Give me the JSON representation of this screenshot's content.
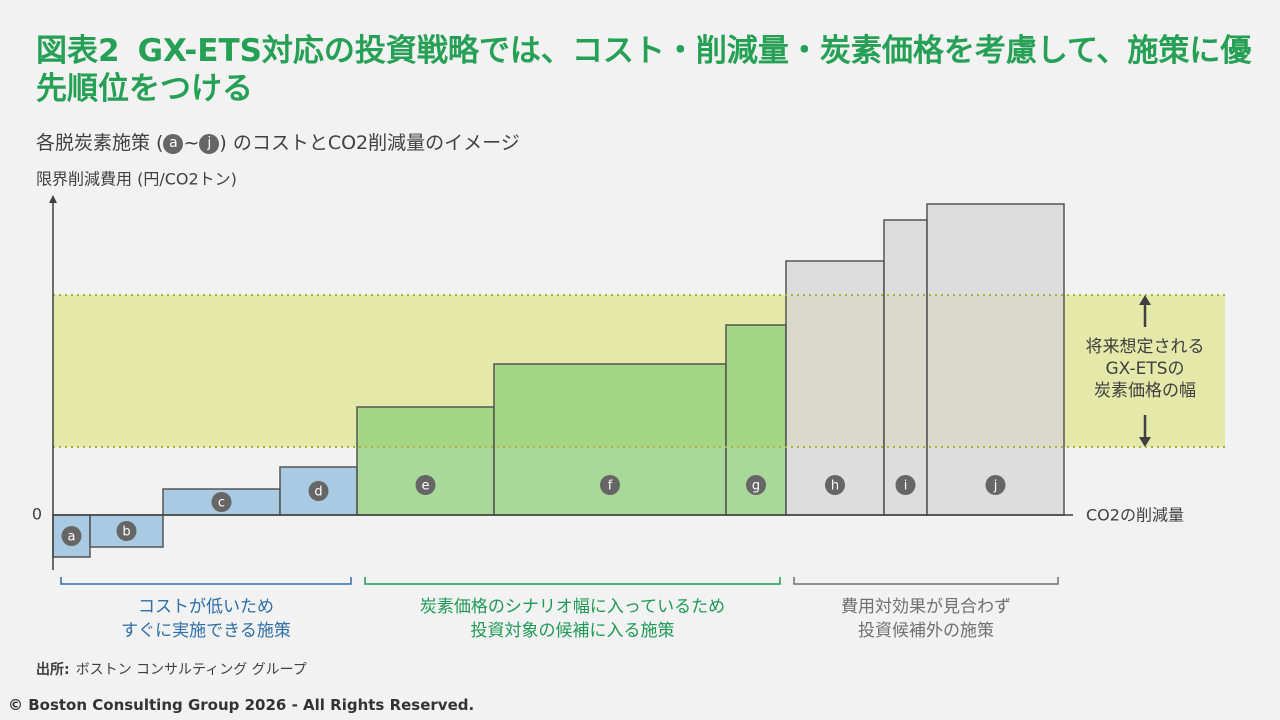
{
  "title_label": "図表2",
  "title": "GX-ETS対応の投資戦略では、コスト・削減量・炭素価格を考慮して、施策に優先順位をつける",
  "subtitle": {
    "before": "各脱炭素施策 (",
    "from": "a",
    "sep": "~",
    "to": "j",
    "after": ") のコストとCO2削減量のイメージ"
  },
  "chart_data": {
    "type": "bar",
    "y_label": "限界削減費用 (円/CO2トン)",
    "x_label": "CO2の削減量",
    "categories": [
      "a",
      "b",
      "c",
      "d",
      "e",
      "f",
      "g",
      "h",
      "i",
      "j"
    ],
    "values": [
      -4.2,
      -3.2,
      2.6,
      4.8,
      10.8,
      15.1,
      19,
      25.4,
      29.5,
      31.1
    ],
    "widths": [
      3.7,
      7.3,
      11.7,
      7.7,
      13.7,
      23.2,
      6,
      9.8,
      4.3,
      13.7
    ],
    "colors": [
      "#8fbcdc",
      "#8fbcdc",
      "#8fbcdc",
      "#8fbcdc",
      "#8fd07a",
      "#8fd07a",
      "#8fd07a",
      "#d6d6d6",
      "#d6d6d6",
      "#d6d6d6"
    ],
    "xlim": [
      0,
      102
    ],
    "ylim": [
      -5.5,
      32
    ],
    "yticks": [
      0
    ],
    "band": {
      "range": [
        6.8,
        22
      ],
      "label": [
        "将来想定される",
        "GX-ETSの",
        "炭素価格の幅"
      ],
      "color": "#e4e8a8"
    },
    "groups": [
      {
        "label": [
          "コストが低いため",
          "すぐに実施できる施策"
        ],
        "members": [
          "a",
          "b",
          "c",
          "d"
        ],
        "color": "#2e6ea8"
      },
      {
        "label": [
          "炭素価格のシナリオ幅に入っているため",
          "投資対象の候補に入る施策"
        ],
        "members": [
          "e",
          "f",
          "g"
        ],
        "color": "#1e9a55"
      },
      {
        "label": [
          "費用対効果が見合わず",
          "投資候補外の施策"
        ],
        "members": [
          "h",
          "i",
          "j"
        ],
        "color": "#707070"
      }
    ]
  },
  "source": {
    "label": "出所:",
    "text": "ボストン コンサルティング グループ"
  },
  "copyright": "© Boston Consulting Group 2026 - All Rights Reserved."
}
